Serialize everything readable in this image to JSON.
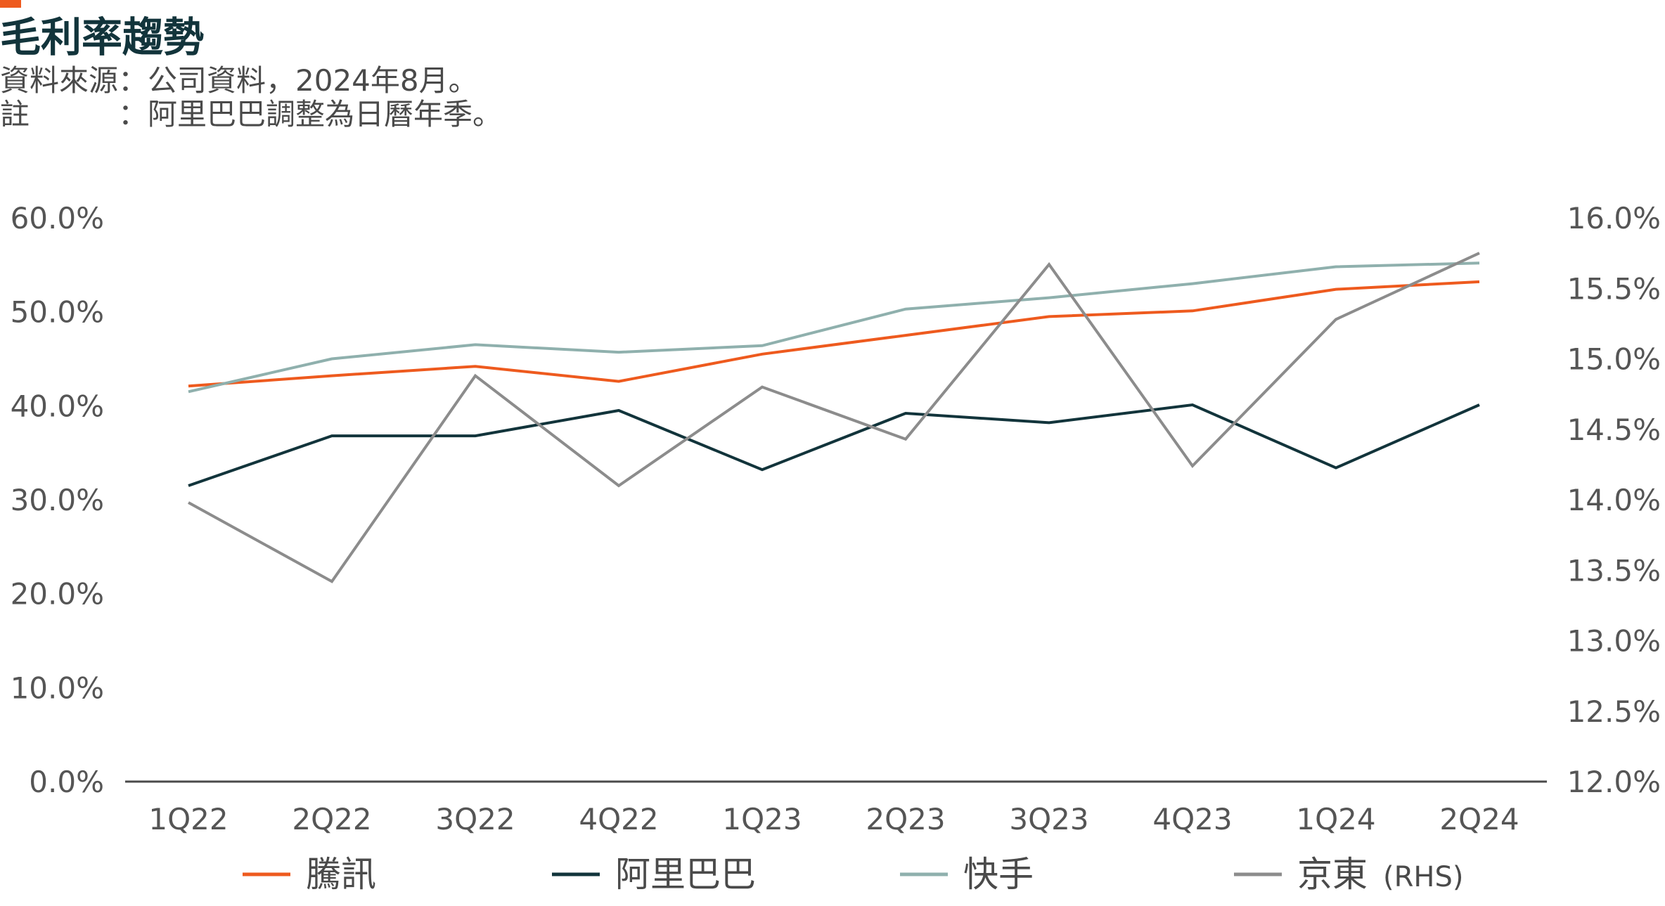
{
  "header": {
    "title": "毛利率趨勢",
    "source": "資料來源：公司資料，2024年8月。",
    "note": "註　　　：阿里巴巴調整為日曆年季。"
  },
  "colors": {
    "accent": "#ee5a1e",
    "axis": "#4a4a4a"
  },
  "chart_data": {
    "type": "line",
    "categories": [
      "1Q22",
      "2Q22",
      "3Q22",
      "4Q22",
      "1Q23",
      "2Q23",
      "3Q23",
      "4Q23",
      "1Q24",
      "2Q24"
    ],
    "y_left": {
      "ylim": [
        0,
        60
      ],
      "ticks": [
        "0.0%",
        "10.0%",
        "20.0%",
        "30.0%",
        "40.0%",
        "50.0%",
        "60.0%"
      ]
    },
    "y_right": {
      "ylim": [
        12,
        16
      ],
      "ticks": [
        "12.0%",
        "12.5%",
        "13.0%",
        "13.5%",
        "14.0%",
        "14.5%",
        "15.0%",
        "15.5%",
        "16.0%"
      ]
    },
    "grid": false,
    "legend_position": "bottom",
    "series": [
      {
        "name": "騰訊",
        "axis": "left",
        "color": "#ee5a1e",
        "values": [
          42.1,
          43.2,
          44.2,
          42.6,
          45.5,
          47.5,
          49.5,
          50.1,
          52.4,
          53.2
        ]
      },
      {
        "name": "阿里巴巴",
        "axis": "left",
        "color": "#12343b",
        "values": [
          31.5,
          36.8,
          36.8,
          39.5,
          33.2,
          39.2,
          38.2,
          40.1,
          33.4,
          40.1
        ]
      },
      {
        "name": "快手",
        "axis": "left",
        "color": "#8fb0ad",
        "values": [
          41.5,
          45.0,
          46.5,
          45.7,
          46.4,
          50.3,
          51.5,
          53.0,
          54.8,
          55.2
        ]
      },
      {
        "name": "京東",
        "axis": "right",
        "color": "#8c8c8c",
        "suffix": "(RHS)",
        "values": [
          13.98,
          13.42,
          14.88,
          14.1,
          14.8,
          14.43,
          15.67,
          14.24,
          15.28,
          15.75
        ]
      }
    ]
  }
}
